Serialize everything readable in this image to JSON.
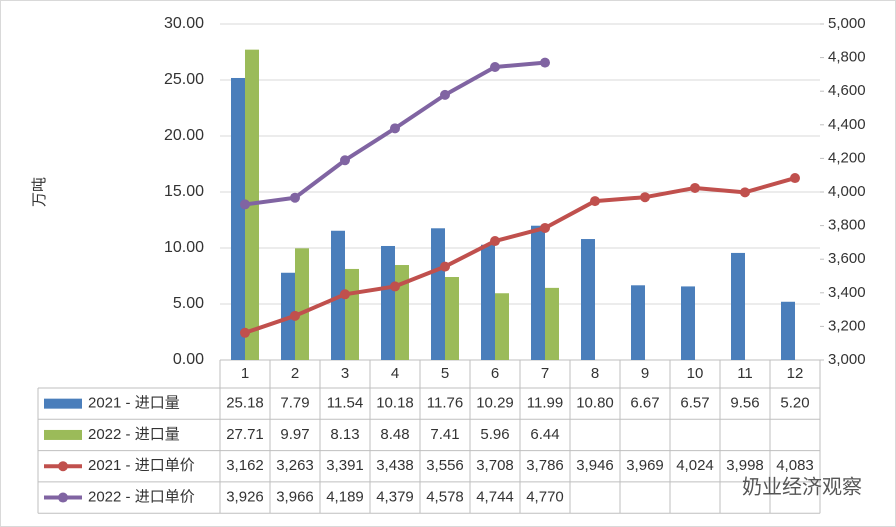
{
  "chart_data": {
    "type": "bar-line-table",
    "y_label": "万吨",
    "watermark": "奶业经济观察",
    "categories": [
      "1",
      "2",
      "3",
      "4",
      "5",
      "6",
      "7",
      "8",
      "9",
      "10",
      "11",
      "12"
    ],
    "ylim": [
      0,
      30
    ],
    "yticks": [
      {
        "value": 0,
        "label": "0.00"
      },
      {
        "value": 5,
        "label": "5.00"
      },
      {
        "value": 10,
        "label": "10.00"
      },
      {
        "value": 15,
        "label": "15.00"
      },
      {
        "value": 20,
        "label": "20.00"
      },
      {
        "value": 25,
        "label": "25.00"
      },
      {
        "value": 30,
        "label": "30.00"
      }
    ],
    "y2lim": [
      3000,
      5000
    ],
    "y2ticks": [
      {
        "value": 3000,
        "label": "3,000"
      },
      {
        "value": 3200,
        "label": "3,200"
      },
      {
        "value": 3400,
        "label": "3,400"
      },
      {
        "value": 3600,
        "label": "3,600"
      },
      {
        "value": 3800,
        "label": "3,800"
      },
      {
        "value": 4000,
        "label": "4,000"
      },
      {
        "value": 4200,
        "label": "4,200"
      },
      {
        "value": 4400,
        "label": "4,400"
      },
      {
        "value": 4600,
        "label": "4,600"
      },
      {
        "value": 4800,
        "label": "4,800"
      },
      {
        "value": 5000,
        "label": "5,000"
      }
    ],
    "series": [
      {
        "name": "2021 - 进口量",
        "kind": "bar",
        "color": "#4a7ebb",
        "values": [
          25.18,
          7.79,
          11.54,
          10.18,
          11.76,
          10.29,
          11.99,
          10.8,
          6.67,
          6.57,
          9.56,
          5.2
        ],
        "value_labels": [
          "25.18",
          "7.79",
          "11.54",
          "10.18",
          "11.76",
          "10.29",
          "11.99",
          "10.80",
          "6.67",
          "6.57",
          "9.56",
          "5.20"
        ]
      },
      {
        "name": "2022 - 进口量",
        "kind": "bar",
        "color": "#9bbb59",
        "values": [
          27.71,
          9.97,
          8.13,
          8.48,
          7.41,
          5.96,
          6.44,
          null,
          null,
          null,
          null,
          null
        ],
        "value_labels": [
          "27.71",
          "9.97",
          "8.13",
          "8.48",
          "7.41",
          "5.96",
          "6.44",
          null,
          null,
          null,
          null,
          null
        ]
      },
      {
        "name": "2021 - 进口单价",
        "kind": "line",
        "axis": "y2",
        "color": "#c0504d",
        "values": [
          3162,
          3263,
          3391,
          3438,
          3556,
          3708,
          3786,
          3946,
          3969,
          4024,
          3998,
          4083
        ],
        "value_labels": [
          "3,162",
          "3,263",
          "3,391",
          "3,438",
          "3,556",
          "3,708",
          "3,786",
          "3,946",
          "3,969",
          "4,024",
          "3,998",
          "4,083"
        ]
      },
      {
        "name": "2022 - 进口单价",
        "kind": "line",
        "axis": "y2",
        "color": "#8064a2",
        "values": [
          3926,
          3966,
          4189,
          4379,
          4578,
          4744,
          4770,
          null,
          null,
          null,
          null,
          null
        ],
        "value_labels": [
          "3,926",
          "3,966",
          "4,189",
          "4,379",
          "4,578",
          "4,744",
          "4,770",
          null,
          null,
          null,
          null,
          null
        ]
      }
    ]
  }
}
